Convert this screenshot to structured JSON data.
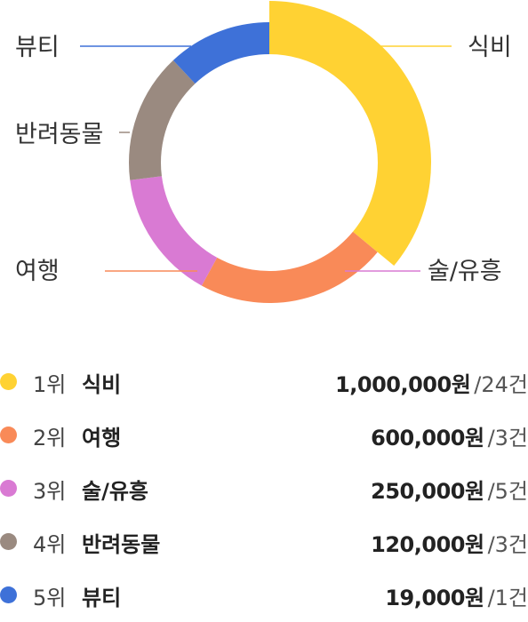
{
  "chart_data": {
    "type": "pie",
    "subtype": "donut",
    "categories": [
      "식비",
      "여행",
      "술/유흥",
      "반려동물",
      "뷰티"
    ],
    "values": [
      1000000,
      600000,
      250000,
      120000,
      19000
    ],
    "shown_proportions": [
      0.36,
      0.22,
      0.15,
      0.15,
      0.12
    ],
    "colors": [
      "#ffd233",
      "#f98a58",
      "#d97ad3",
      "#9a8a80",
      "#3e71d8"
    ],
    "highlighted": "식비",
    "callout_labels": [
      "식비",
      "술/유흥",
      "여행",
      "반려동물",
      "뷰티"
    ]
  },
  "legend": {
    "rows": [
      {
        "rank": "1위",
        "category": "식비",
        "amount": "1,000,000원",
        "count": "/24건",
        "color": "#ffd233"
      },
      {
        "rank": "2위",
        "category": "여행",
        "amount": "600,000원",
        "count": "/3건",
        "color": "#f98a58"
      },
      {
        "rank": "3위",
        "category": "술/유흥",
        "amount": "250,000원",
        "count": "/5건",
        "color": "#d97ad3"
      },
      {
        "rank": "4위",
        "category": "반려동물",
        "amount": "120,000원",
        "count": "/3건",
        "color": "#9a8a80"
      },
      {
        "rank": "5위",
        "category": "뷰티",
        "amount": "19,000원",
        "count": "/1건",
        "color": "#3e71d8"
      }
    ]
  }
}
